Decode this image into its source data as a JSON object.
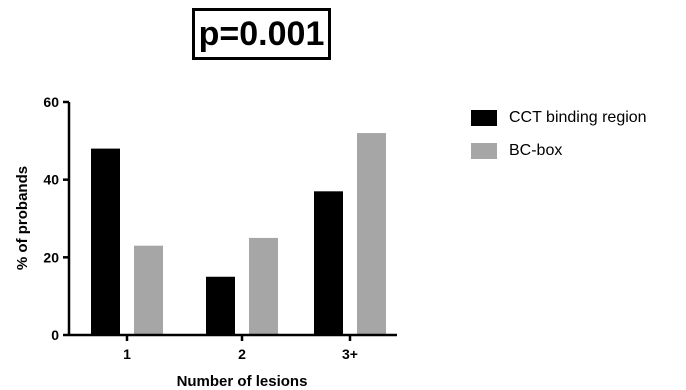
{
  "chart_data": {
    "type": "bar",
    "annotation": "p=0.001",
    "xlabel": "Number of lesions",
    "ylabel": "% of probands",
    "categories": [
      "1",
      "2",
      "3+"
    ],
    "series": [
      {
        "name": "CCT binding region",
        "color": "#000000",
        "values": [
          48,
          15,
          37
        ]
      },
      {
        "name": "BC-box",
        "color": "#a6a6a6",
        "values": [
          23,
          25,
          52
        ]
      }
    ],
    "ylim": [
      0,
      60
    ],
    "yticks": [
      "0",
      "20",
      "40",
      "60"
    ],
    "grid": false,
    "legend_position": "right"
  }
}
